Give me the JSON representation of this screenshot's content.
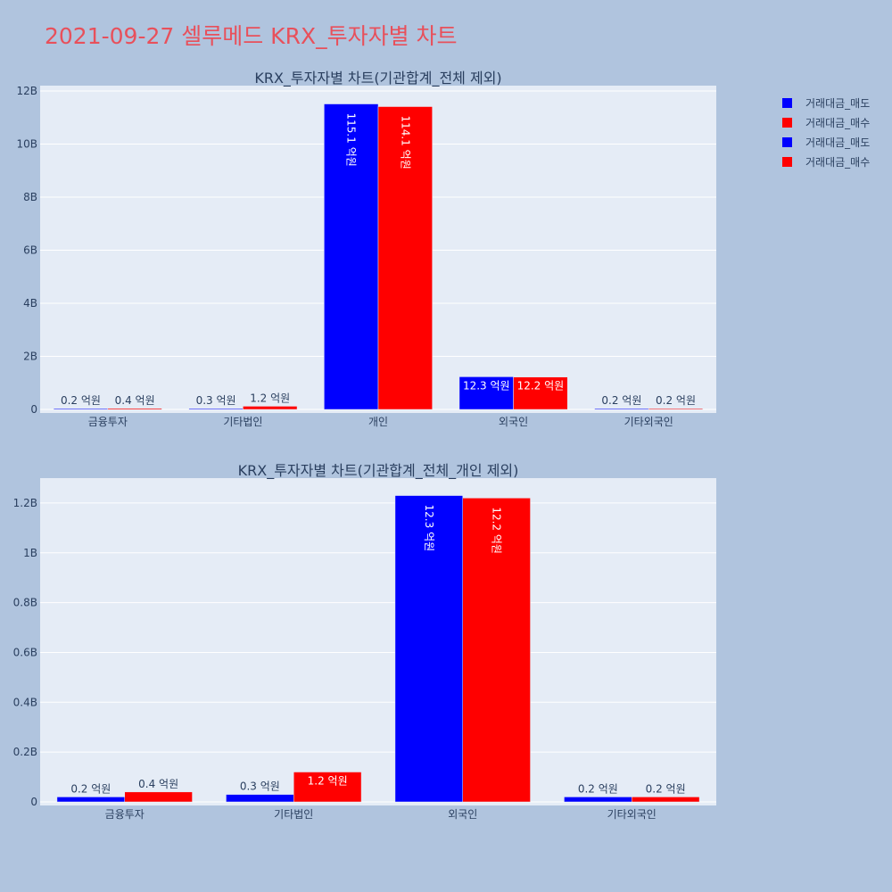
{
  "title": "2021-09-27 셀루메드 KRX_투자자별 차트",
  "colors": {
    "sell": "#0000ff",
    "buy": "#ff0000",
    "background": "#b0c4de",
    "plot_bg": "#e5ecf6",
    "title": "#e8505b"
  },
  "legend": [
    {
      "name": "거래대금_매도",
      "color": "#0000ff"
    },
    {
      "name": "거래대금_매수",
      "color": "#ff0000"
    },
    {
      "name": "거래대금_매도",
      "color": "#0000ff"
    },
    {
      "name": "거래대금_매수",
      "color": "#ff0000"
    }
  ],
  "chart_data": [
    {
      "type": "bar",
      "title": "KRX_투자자별 차트(기관합계_전체 제외)",
      "categories": [
        "금융투자",
        "기타법인",
        "개인",
        "외국인",
        "기타외국인"
      ],
      "series": [
        {
          "name": "거래대금_매도",
          "values": [
            20000000,
            30000000,
            11510000000,
            1230000000,
            20000000
          ],
          "labels": [
            "0.2 억원",
            "0.3 억원",
            "115.1 억원",
            "12.3 억원",
            "0.2 억원"
          ]
        },
        {
          "name": "거래대금_매수",
          "values": [
            40000000,
            120000000,
            11410000000,
            1220000000,
            20000000
          ],
          "labels": [
            "0.4 억원",
            "1.2 억원",
            "114.1 억원",
            "12.2 억원",
            "0.2 억원"
          ]
        }
      ],
      "ylim": [
        0,
        12200000000
      ],
      "yticks": [
        0,
        2000000000,
        4000000000,
        6000000000,
        8000000000,
        10000000000,
        12000000000
      ],
      "ytick_labels": [
        "0",
        "2B",
        "4B",
        "6B",
        "8B",
        "10B",
        "12B"
      ],
      "grid": true
    },
    {
      "type": "bar",
      "title": "KRX_투자자별 차트(기관합계_전체_개인 제외)",
      "categories": [
        "금융투자",
        "기타법인",
        "외국인",
        "기타외국인"
      ],
      "series": [
        {
          "name": "거래대금_매도",
          "values": [
            20000000,
            30000000,
            1230000000,
            20000000
          ],
          "labels": [
            "0.2 억원",
            "0.3 억원",
            "12.3 억원",
            "0.2 억원"
          ]
        },
        {
          "name": "거래대금_매수",
          "values": [
            40000000,
            120000000,
            1220000000,
            20000000
          ],
          "labels": [
            "0.4 억원",
            "1.2 억원",
            "12.2 억원",
            "0.2 억원"
          ]
        }
      ],
      "ylim": [
        0,
        1300000000
      ],
      "yticks": [
        0,
        200000000,
        400000000,
        600000000,
        800000000,
        1000000000,
        1200000000
      ],
      "ytick_labels": [
        "0",
        "0.2B",
        "0.4B",
        "0.6B",
        "0.8B",
        "1B",
        "1.2B"
      ],
      "grid": true
    }
  ]
}
